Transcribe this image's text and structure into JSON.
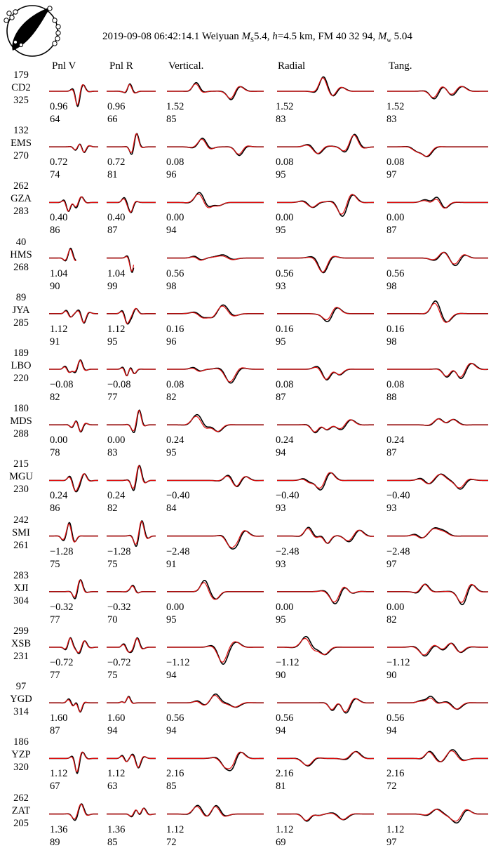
{
  "title": {
    "datetime": "2019-09-08 06:42:14.1",
    "place": "Weiyuan",
    "ms_label": "M",
    "ms_sub": "S",
    "ms_value": "5.4,",
    "depth_label": "h",
    "depth_value": "=4.5 km,",
    "fm": "FM 40 32 94,",
    "mw_label": "M",
    "mw_sub": "w",
    "mw_value": "5.04"
  },
  "columns": [
    "Pnl V",
    "Pnl R",
    "Vertical.",
    "Radial",
    "Tang."
  ],
  "colors": {
    "observed": "#000000",
    "synthetic": "#e01010"
  },
  "stations": [
    {
      "az": "179",
      "name": "CD2",
      "dist": "325",
      "shifts": [
        "0.96",
        "0.96",
        "1.52",
        "1.52",
        "1.52"
      ],
      "cc": [
        "64",
        "66",
        "85",
        "83",
        "83"
      ]
    },
    {
      "az": "132",
      "name": "EMS",
      "dist": "270",
      "shifts": [
        "0.72",
        "0.72",
        "0.08",
        "0.08",
        "0.08"
      ],
      "cc": [
        "74",
        "81",
        "96",
        "95",
        "97"
      ]
    },
    {
      "az": "262",
      "name": "GZA",
      "dist": "283",
      "shifts": [
        "0.40",
        "0.40",
        "0.00",
        "0.00",
        "0.00"
      ],
      "cc": [
        "86",
        "87",
        "94",
        "95",
        "87"
      ]
    },
    {
      "az": "40",
      "name": "HMS",
      "dist": "268",
      "shifts": [
        "1.04",
        "1.04",
        "0.56",
        "0.56",
        "0.56"
      ],
      "cc": [
        "90",
        "99",
        "98",
        "93",
        "98"
      ]
    },
    {
      "az": "89",
      "name": "JYA",
      "dist": "285",
      "shifts": [
        "1.12",
        "1.12",
        "0.16",
        "0.16",
        "0.16"
      ],
      "cc": [
        "91",
        "95",
        "96",
        "95",
        "98"
      ]
    },
    {
      "az": "189",
      "name": "LBO",
      "dist": "220",
      "shifts": [
        "−0.08",
        "−0.08",
        "0.08",
        "0.08",
        "0.08"
      ],
      "cc": [
        "82",
        "77",
        "82",
        "87",
        "88"
      ]
    },
    {
      "az": "180",
      "name": "MDS",
      "dist": "288",
      "shifts": [
        "0.00",
        "0.00",
        "0.24",
        "0.24",
        "0.24"
      ],
      "cc": [
        "78",
        "83",
        "95",
        "94",
        "87"
      ]
    },
    {
      "az": "215",
      "name": "MGU",
      "dist": "230",
      "shifts": [
        "0.24",
        "0.24",
        "−0.40",
        "−0.40",
        "−0.40"
      ],
      "cc": [
        "86",
        "82",
        "84",
        "93",
        "93"
      ]
    },
    {
      "az": "242",
      "name": "SMI",
      "dist": "261",
      "shifts": [
        "−1.28",
        "−1.28",
        "−2.48",
        "−2.48",
        "−2.48"
      ],
      "cc": [
        "75",
        "75",
        "91",
        "93",
        "97"
      ]
    },
    {
      "az": "283",
      "name": "XJI",
      "dist": "304",
      "shifts": [
        "−0.32",
        "−0.32",
        "0.00",
        "0.00",
        "0.00"
      ],
      "cc": [
        "77",
        "70",
        "95",
        "95",
        "82"
      ]
    },
    {
      "az": "299",
      "name": "XSB",
      "dist": "231",
      "shifts": [
        "−0.72",
        "−0.72",
        "−1.12",
        "−1.12",
        "−1.12"
      ],
      "cc": [
        "77",
        "75",
        "94",
        "90",
        "90"
      ]
    },
    {
      "az": "97",
      "name": "YGD",
      "dist": "314",
      "shifts": [
        "1.60",
        "1.60",
        "0.56",
        "0.56",
        "0.56"
      ],
      "cc": [
        "87",
        "94",
        "94",
        "94",
        "94"
      ]
    },
    {
      "az": "186",
      "name": "YZP",
      "dist": "320",
      "shifts": [
        "1.12",
        "1.12",
        "2.16",
        "2.16",
        "2.16"
      ],
      "cc": [
        "67",
        "63",
        "85",
        "81",
        "72"
      ]
    },
    {
      "az": "262",
      "name": "ZAT",
      "dist": "205",
      "shifts": [
        "1.36",
        "1.36",
        "1.12",
        "1.12",
        "1.12"
      ],
      "cc": [
        "89",
        "85",
        "72",
        "69",
        "97"
      ]
    }
  ]
}
